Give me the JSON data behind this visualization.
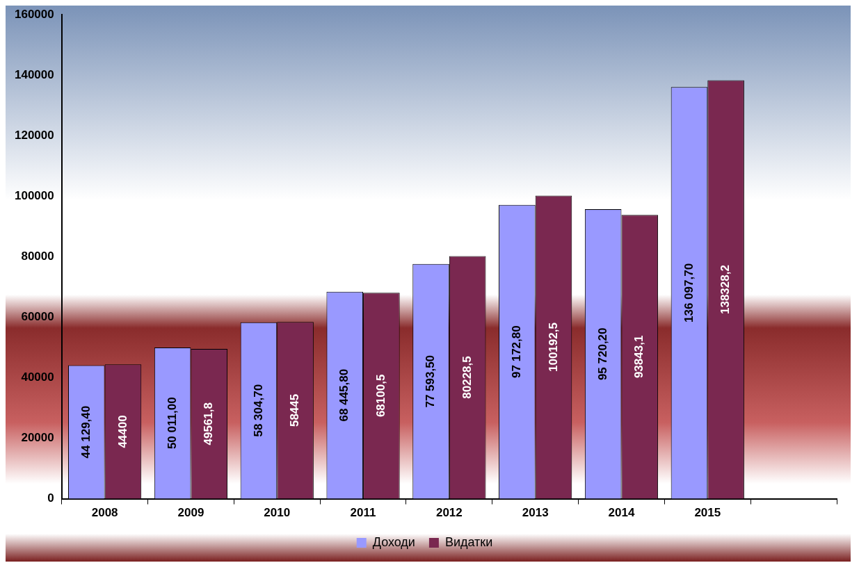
{
  "chart_data": {
    "type": "bar",
    "categories": [
      "2008",
      "2009",
      "2010",
      "2011",
      "2012",
      "2013",
      "2014",
      "2015",
      null
    ],
    "series": [
      {
        "name": "Доходи",
        "color": "#9999ff",
        "values": [
          44129.4,
          50011,
          58304.7,
          68445.8,
          77593.5,
          97172.8,
          95720.2,
          136097.7,
          null
        ],
        "value_labels": [
          "44 129,40",
          "50 011,00",
          "58 304,70",
          "68 445,80",
          "77 593,50",
          "97 172,80",
          "95 720,20",
          "136 097,70",
          null
        ]
      },
      {
        "name": "Видатки",
        "color": "#7a2850",
        "values": [
          44400,
          49561.8,
          58445,
          68100.5,
          80228.5,
          100192.5,
          93843.1,
          138328.2,
          null
        ],
        "value_labels": [
          "44400",
          "49561,8",
          "58445",
          "68100,5",
          "80228,5",
          "100192,5",
          "93843,1",
          "138328,2",
          null
        ]
      }
    ],
    "ylim": [
      0,
      160000
    ],
    "yticks": [
      0,
      20000,
      40000,
      60000,
      80000,
      100000,
      120000,
      140000,
      160000
    ],
    "grid": false,
    "legend": "bottom"
  }
}
